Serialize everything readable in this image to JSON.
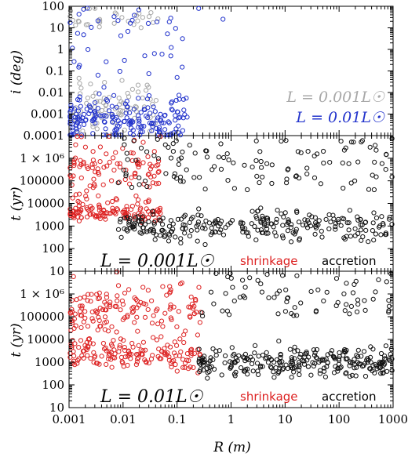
{
  "chart_data": [
    {
      "type": "scatter",
      "panel": "top",
      "ylabel": "i (deg)",
      "yscale": "log",
      "ylim": [
        0.0001,
        100
      ],
      "yticks": [
        "100",
        "10",
        "1",
        "0.1",
        "0.01",
        "0.001",
        "0.0001"
      ],
      "xscale": "log",
      "xlim": [
        0.001,
        1000
      ],
      "grid": false,
      "legend_position": "bottom-right",
      "series": [
        {
          "name": "L = 0.001L☉",
          "color": "#a8a8a8"
        },
        {
          "name": "L = 0.01L☉",
          "color": "#2233cc"
        }
      ]
    },
    {
      "type": "scatter",
      "panel": "middle",
      "ylabel": "t (yr)",
      "yscale": "log",
      "ylim": [
        10,
        10000000
      ],
      "yticks": [
        "1 × 10⁶",
        "100000",
        "10000",
        "1000",
        "100",
        "10"
      ],
      "xscale": "log",
      "xlim": [
        0.001,
        1000
      ],
      "grid": false,
      "annotation": "L = 0.001L☉",
      "series": [
        {
          "name": "shrinkage",
          "color": "#dd2222"
        },
        {
          "name": "accretion",
          "color": "#111111"
        }
      ]
    },
    {
      "type": "scatter",
      "panel": "bottom",
      "ylabel": "t (yr)",
      "yscale": "log",
      "ylim": [
        10,
        10000000
      ],
      "yticks": [
        "1 × 10⁶",
        "100000",
        "10000",
        "1000",
        "100",
        "10"
      ],
      "xlabel": "R (m)",
      "xscale": "log",
      "xlim": [
        0.001,
        1000
      ],
      "xticks": [
        "0.001",
        "0.01",
        "0.1",
        "1",
        "10",
        "100",
        "1000"
      ],
      "grid": false,
      "annotation": "L = 0.01L☉",
      "series": [
        {
          "name": "shrinkage",
          "color": "#dd2222"
        },
        {
          "name": "accretion",
          "color": "#111111"
        }
      ]
    }
  ],
  "labels": {
    "top_ylabel": "i (deg)",
    "mid_ylabel": "t (yr)",
    "bot_ylabel": "t (yr)",
    "xlabel": "R (m)",
    "legend_gray": "L = 0.001L☉",
    "legend_blue": "L = 0.01L☉",
    "mid_annotation": "L = 0.001L☉",
    "bot_annotation": "L = 0.01L☉",
    "shrinkage": "shrinkage",
    "accretion": "accretion"
  },
  "colors": {
    "gray": "#a8a8a8",
    "blue": "#2233cc",
    "red": "#dd2222",
    "black": "#111111"
  }
}
